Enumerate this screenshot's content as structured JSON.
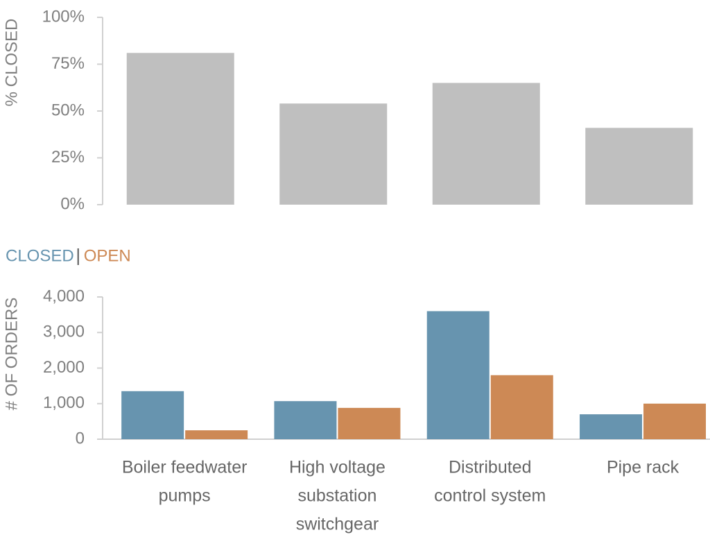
{
  "chart_data": [
    {
      "type": "bar",
      "ylabel": "% CLOSED",
      "values": [
        81,
        54,
        65,
        41
      ],
      "color": "#bfbfbf",
      "ylim": [
        0,
        100
      ],
      "yticks": [
        {
          "value": 0,
          "label": "0%"
        },
        {
          "value": 25,
          "label": "25%"
        },
        {
          "value": 50,
          "label": "50%"
        },
        {
          "value": 75,
          "label": "75%"
        },
        {
          "value": 100,
          "label": "100%"
        }
      ]
    },
    {
      "type": "grouped-bar",
      "ylabel": "# OF ORDERS",
      "categories": [
        [
          "Boiler feedwater",
          "pumps"
        ],
        [
          "High voltage",
          "substation",
          "switchgear"
        ],
        [
          "Distributed",
          "control system"
        ],
        [
          "Pipe rack"
        ]
      ],
      "series": [
        {
          "name": "CLOSED",
          "color": "#6794af",
          "values": [
            1350,
            1070,
            3600,
            700
          ]
        },
        {
          "name": "OPEN",
          "color": "#cd8955",
          "values": [
            250,
            880,
            1800,
            1000
          ]
        }
      ],
      "ylim": [
        0,
        4000
      ],
      "yticks": [
        0,
        {
          "value": 1000,
          "label": "1,000"
        },
        {
          "value": 2000,
          "label": "2,000"
        },
        {
          "value": 3000,
          "label": "3,000"
        },
        {
          "value": 4000,
          "label": "4,000"
        }
      ]
    }
  ]
}
